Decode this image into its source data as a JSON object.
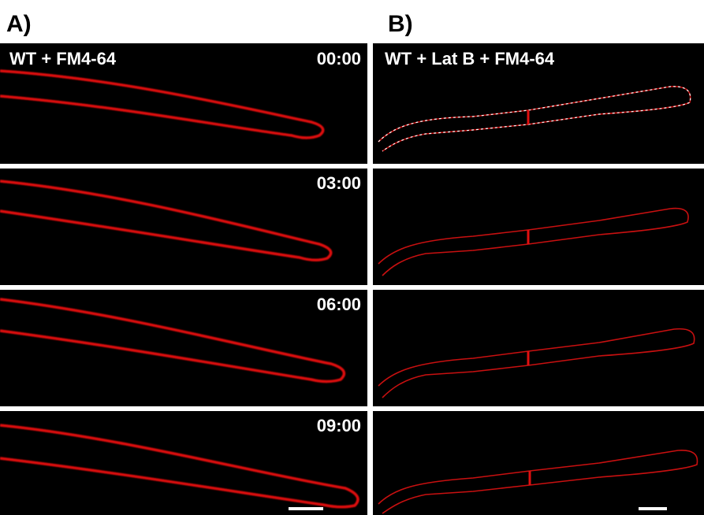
{
  "panels": {
    "a": {
      "label": "A)",
      "title": "WT + FM4-64",
      "timestamps": [
        "00:00",
        "03:00",
        "06:00",
        "09:00"
      ]
    },
    "b": {
      "label": "B)",
      "title": "WT + Lat B + FM4-64"
    }
  }
}
